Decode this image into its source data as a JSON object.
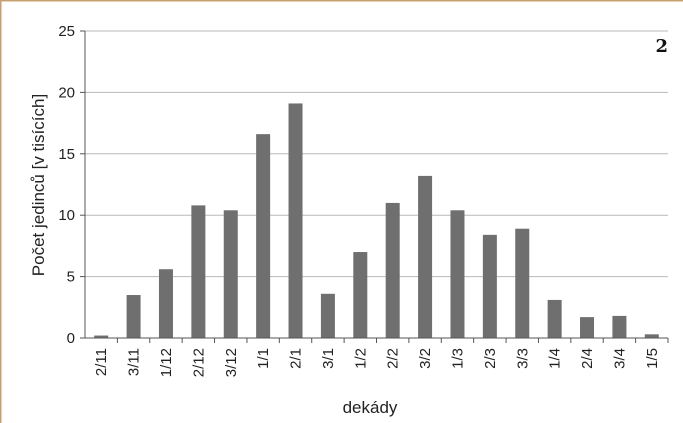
{
  "panel_label": "2",
  "colors": {
    "bar": "#6f6f6f",
    "grid": "#b8b8b8",
    "axis": "#555555",
    "frame": "#c8a070"
  },
  "chart_data": {
    "type": "bar",
    "title": "",
    "xlabel": "dekády",
    "ylabel": "Počet jedinců [v tisících]",
    "ylim": [
      0,
      25
    ],
    "yticks": [
      0,
      5,
      10,
      15,
      20,
      25
    ],
    "grid": true,
    "categories": [
      "2/11",
      "3/11",
      "1/12",
      "2/12",
      "3/12",
      "1/1",
      "2/1",
      "3/1",
      "1/2",
      "2/2",
      "3/2",
      "1/3",
      "2/3",
      "3/3",
      "1/4",
      "2/4",
      "3/4",
      "1/5"
    ],
    "values": [
      0.2,
      3.5,
      5.6,
      10.8,
      10.4,
      16.6,
      19.1,
      3.6,
      7.0,
      11.0,
      13.2,
      10.4,
      8.4,
      8.9,
      3.1,
      1.7,
      1.8,
      0.3
    ]
  }
}
